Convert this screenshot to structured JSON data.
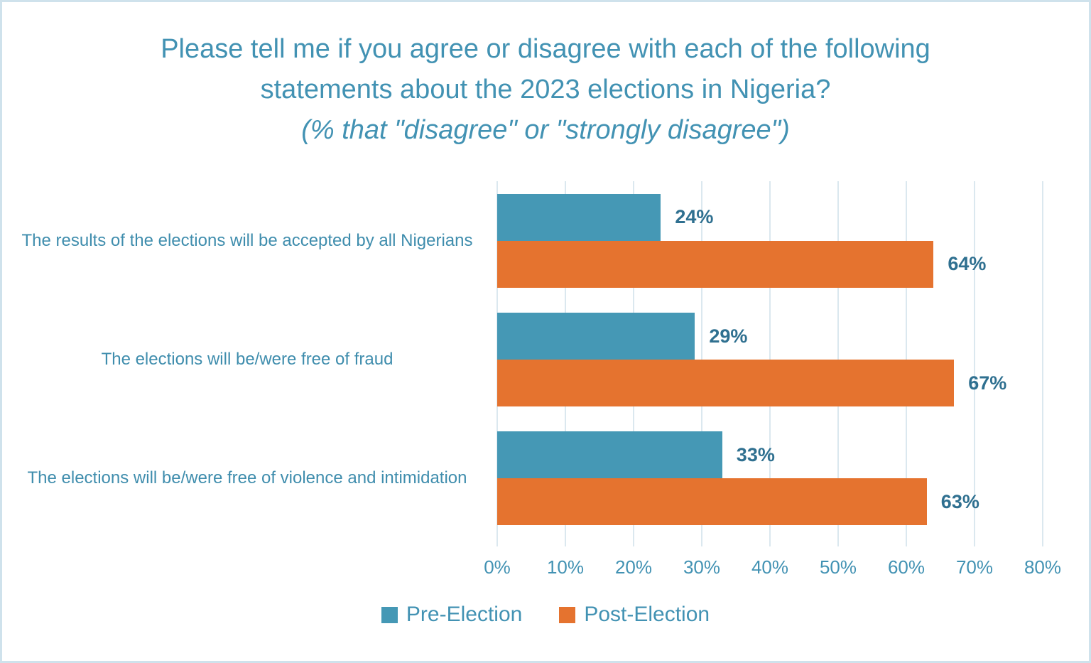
{
  "chart_data": {
    "type": "bar",
    "orientation": "horizontal",
    "title": "Please tell me if you agree or disagree with each of the following statements about the 2023 elections in Nigeria?",
    "subtitle": "(% that \"disagree\" or \"strongly disagree\")",
    "categories": [
      "The results of the elections will be accepted by all Nigerians",
      "The elections will be/were free of fraud",
      "The elections will be/were free of violence and intimidation"
    ],
    "series": [
      {
        "name": "Pre-Election",
        "color": "#4598b5",
        "values": [
          24,
          29,
          33
        ]
      },
      {
        "name": "Post-Election",
        "color": "#e5732f",
        "values": [
          64,
          67,
          63
        ]
      }
    ],
    "data_label_suffix": "%",
    "xlim": [
      0,
      80
    ],
    "x_tick_labels": [
      "0%",
      "10%",
      "20%",
      "30%",
      "40%",
      "50%",
      "60%",
      "70%",
      "80%"
    ],
    "grid": true,
    "legend_position": "bottom",
    "style": {
      "title_text_color": "#4292b3",
      "axis_text_color": "#4292b3",
      "category_text_color": "#3f8dad",
      "data_label_color": "#2f7090",
      "legend_text_color": "#4292b3",
      "gridline_color": "#dbe8ef",
      "frame_border_color": "#cfe2ec",
      "background_color": "#ffffff"
    }
  }
}
